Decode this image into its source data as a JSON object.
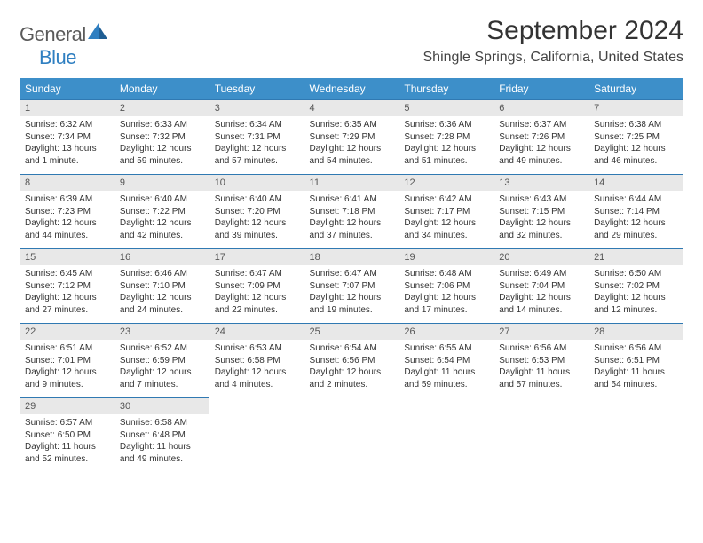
{
  "brand": {
    "general": "General",
    "blue": "Blue"
  },
  "title": "September 2024",
  "location": "Shingle Springs, California, United States",
  "colors": {
    "header_bg": "#3d8fc9",
    "header_text": "#ffffff",
    "daynum_bg": "#e8e8e8",
    "rule": "#3079b2",
    "brand_blue": "#2f7fc1",
    "brand_gray": "#5a5a5a"
  },
  "weekdays": [
    "Sunday",
    "Monday",
    "Tuesday",
    "Wednesday",
    "Thursday",
    "Friday",
    "Saturday"
  ],
  "weeks": [
    [
      {
        "n": "1",
        "sr": "Sunrise: 6:32 AM",
        "ss": "Sunset: 7:34 PM",
        "dl": "Daylight: 13 hours and 1 minute."
      },
      {
        "n": "2",
        "sr": "Sunrise: 6:33 AM",
        "ss": "Sunset: 7:32 PM",
        "dl": "Daylight: 12 hours and 59 minutes."
      },
      {
        "n": "3",
        "sr": "Sunrise: 6:34 AM",
        "ss": "Sunset: 7:31 PM",
        "dl": "Daylight: 12 hours and 57 minutes."
      },
      {
        "n": "4",
        "sr": "Sunrise: 6:35 AM",
        "ss": "Sunset: 7:29 PM",
        "dl": "Daylight: 12 hours and 54 minutes."
      },
      {
        "n": "5",
        "sr": "Sunrise: 6:36 AM",
        "ss": "Sunset: 7:28 PM",
        "dl": "Daylight: 12 hours and 51 minutes."
      },
      {
        "n": "6",
        "sr": "Sunrise: 6:37 AM",
        "ss": "Sunset: 7:26 PM",
        "dl": "Daylight: 12 hours and 49 minutes."
      },
      {
        "n": "7",
        "sr": "Sunrise: 6:38 AM",
        "ss": "Sunset: 7:25 PM",
        "dl": "Daylight: 12 hours and 46 minutes."
      }
    ],
    [
      {
        "n": "8",
        "sr": "Sunrise: 6:39 AM",
        "ss": "Sunset: 7:23 PM",
        "dl": "Daylight: 12 hours and 44 minutes."
      },
      {
        "n": "9",
        "sr": "Sunrise: 6:40 AM",
        "ss": "Sunset: 7:22 PM",
        "dl": "Daylight: 12 hours and 42 minutes."
      },
      {
        "n": "10",
        "sr": "Sunrise: 6:40 AM",
        "ss": "Sunset: 7:20 PM",
        "dl": "Daylight: 12 hours and 39 minutes."
      },
      {
        "n": "11",
        "sr": "Sunrise: 6:41 AM",
        "ss": "Sunset: 7:18 PM",
        "dl": "Daylight: 12 hours and 37 minutes."
      },
      {
        "n": "12",
        "sr": "Sunrise: 6:42 AM",
        "ss": "Sunset: 7:17 PM",
        "dl": "Daylight: 12 hours and 34 minutes."
      },
      {
        "n": "13",
        "sr": "Sunrise: 6:43 AM",
        "ss": "Sunset: 7:15 PM",
        "dl": "Daylight: 12 hours and 32 minutes."
      },
      {
        "n": "14",
        "sr": "Sunrise: 6:44 AM",
        "ss": "Sunset: 7:14 PM",
        "dl": "Daylight: 12 hours and 29 minutes."
      }
    ],
    [
      {
        "n": "15",
        "sr": "Sunrise: 6:45 AM",
        "ss": "Sunset: 7:12 PM",
        "dl": "Daylight: 12 hours and 27 minutes."
      },
      {
        "n": "16",
        "sr": "Sunrise: 6:46 AM",
        "ss": "Sunset: 7:10 PM",
        "dl": "Daylight: 12 hours and 24 minutes."
      },
      {
        "n": "17",
        "sr": "Sunrise: 6:47 AM",
        "ss": "Sunset: 7:09 PM",
        "dl": "Daylight: 12 hours and 22 minutes."
      },
      {
        "n": "18",
        "sr": "Sunrise: 6:47 AM",
        "ss": "Sunset: 7:07 PM",
        "dl": "Daylight: 12 hours and 19 minutes."
      },
      {
        "n": "19",
        "sr": "Sunrise: 6:48 AM",
        "ss": "Sunset: 7:06 PM",
        "dl": "Daylight: 12 hours and 17 minutes."
      },
      {
        "n": "20",
        "sr": "Sunrise: 6:49 AM",
        "ss": "Sunset: 7:04 PM",
        "dl": "Daylight: 12 hours and 14 minutes."
      },
      {
        "n": "21",
        "sr": "Sunrise: 6:50 AM",
        "ss": "Sunset: 7:02 PM",
        "dl": "Daylight: 12 hours and 12 minutes."
      }
    ],
    [
      {
        "n": "22",
        "sr": "Sunrise: 6:51 AM",
        "ss": "Sunset: 7:01 PM",
        "dl": "Daylight: 12 hours and 9 minutes."
      },
      {
        "n": "23",
        "sr": "Sunrise: 6:52 AM",
        "ss": "Sunset: 6:59 PM",
        "dl": "Daylight: 12 hours and 7 minutes."
      },
      {
        "n": "24",
        "sr": "Sunrise: 6:53 AM",
        "ss": "Sunset: 6:58 PM",
        "dl": "Daylight: 12 hours and 4 minutes."
      },
      {
        "n": "25",
        "sr": "Sunrise: 6:54 AM",
        "ss": "Sunset: 6:56 PM",
        "dl": "Daylight: 12 hours and 2 minutes."
      },
      {
        "n": "26",
        "sr": "Sunrise: 6:55 AM",
        "ss": "Sunset: 6:54 PM",
        "dl": "Daylight: 11 hours and 59 minutes."
      },
      {
        "n": "27",
        "sr": "Sunrise: 6:56 AM",
        "ss": "Sunset: 6:53 PM",
        "dl": "Daylight: 11 hours and 57 minutes."
      },
      {
        "n": "28",
        "sr": "Sunrise: 6:56 AM",
        "ss": "Sunset: 6:51 PM",
        "dl": "Daylight: 11 hours and 54 minutes."
      }
    ],
    [
      {
        "n": "29",
        "sr": "Sunrise: 6:57 AM",
        "ss": "Sunset: 6:50 PM",
        "dl": "Daylight: 11 hours and 52 minutes."
      },
      {
        "n": "30",
        "sr": "Sunrise: 6:58 AM",
        "ss": "Sunset: 6:48 PM",
        "dl": "Daylight: 11 hours and 49 minutes."
      },
      null,
      null,
      null,
      null,
      null
    ]
  ]
}
